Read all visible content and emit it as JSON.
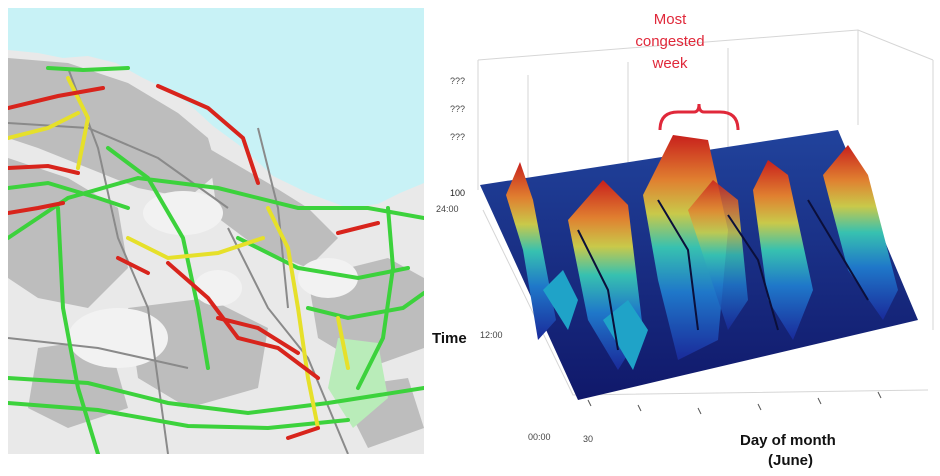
{
  "colors": {
    "sea": "#c8f2f6",
    "land": "#e9e9e9",
    "urban": "#b8b8b8",
    "free_flow": "#3cd23c",
    "moderate": "#e6e02a",
    "congested": "#d8241c",
    "annotation": "#e0283a"
  },
  "surface_plot": {
    "annotation": [
      "Most",
      "congested",
      "week"
    ],
    "z_axis_ticks": [
      "???",
      "???",
      "???",
      "100"
    ],
    "y_axis_title": "Time",
    "y_axis_ticks": [
      "24:00",
      "12:00",
      "00:00"
    ],
    "x_axis_title_line1": "Day of month",
    "x_axis_title_line2": "(June)",
    "x_axis_first_tick": "30"
  }
}
